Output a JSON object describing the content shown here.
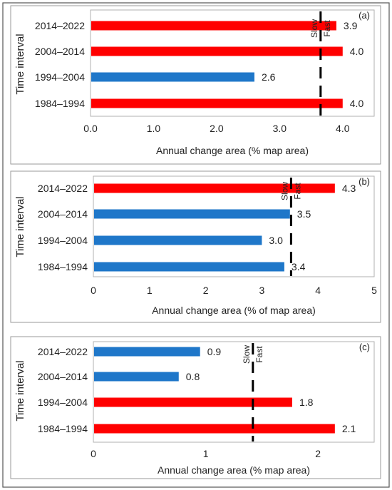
{
  "chart_data": [
    {
      "type": "bar",
      "panel_label": "(a)",
      "ylabel": "Time interval",
      "xlabel": "Annual change area (% map area)",
      "categories": [
        "2014–2022",
        "2004–2014",
        "1994–2004",
        "1984–1994"
      ],
      "values": [
        3.9,
        4.0,
        2.6,
        4.0
      ],
      "value_labels": [
        "3.9",
        "4.0",
        "2.6",
        "4.0"
      ],
      "bar_colors": [
        "#ff0000",
        "#ff0000",
        "#1f77c9",
        "#ff0000"
      ],
      "xlim": [
        0,
        4.5
      ],
      "xticks": [
        0,
        1,
        2,
        3,
        4
      ],
      "xtick_labels": [
        "0.0",
        "1.0",
        "2.0",
        "3.0",
        "4.0"
      ],
      "threshold": 3.65,
      "slow_label": "Slow",
      "fast_label": "Fast"
    },
    {
      "type": "bar",
      "panel_label": "(b)",
      "ylabel": "Time interval",
      "xlabel": "Annual change area (% of map area)",
      "categories": [
        "2014–2022",
        "2004–2014",
        "1994–2004",
        "1984–1994"
      ],
      "values": [
        4.3,
        3.5,
        3.0,
        3.4
      ],
      "value_labels": [
        "4.3",
        "3.5",
        "3.0",
        "3.4"
      ],
      "bar_colors": [
        "#ff0000",
        "#1f77c9",
        "#1f77c9",
        "#1f77c9"
      ],
      "xlim": [
        0,
        5
      ],
      "xticks": [
        0,
        1,
        2,
        3,
        4,
        5
      ],
      "xtick_labels": [
        "0",
        "1",
        "2",
        "3",
        "4",
        "5"
      ],
      "threshold": 3.52,
      "slow_label": "Slow",
      "fast_label": "Fast"
    },
    {
      "type": "bar",
      "panel_label": "(c)",
      "ylabel": "Time interval",
      "xlabel": "Annual change area (% map area)",
      "categories": [
        "2014–2022",
        "2004–2014",
        "1994–2004",
        "1984–1994"
      ],
      "values": [
        0.95,
        0.76,
        1.77,
        2.15
      ],
      "value_labels": [
        "0.9",
        "0.8",
        "1.8",
        "2.1"
      ],
      "bar_colors": [
        "#1f77c9",
        "#1f77c9",
        "#ff0000",
        "#ff0000"
      ],
      "xlim": [
        0,
        2.5
      ],
      "xticks": [
        0,
        1,
        2
      ],
      "xtick_labels": [
        "0",
        "1",
        "2"
      ],
      "threshold": 1.42,
      "slow_label": "Slow",
      "fast_label": "Fast"
    }
  ]
}
